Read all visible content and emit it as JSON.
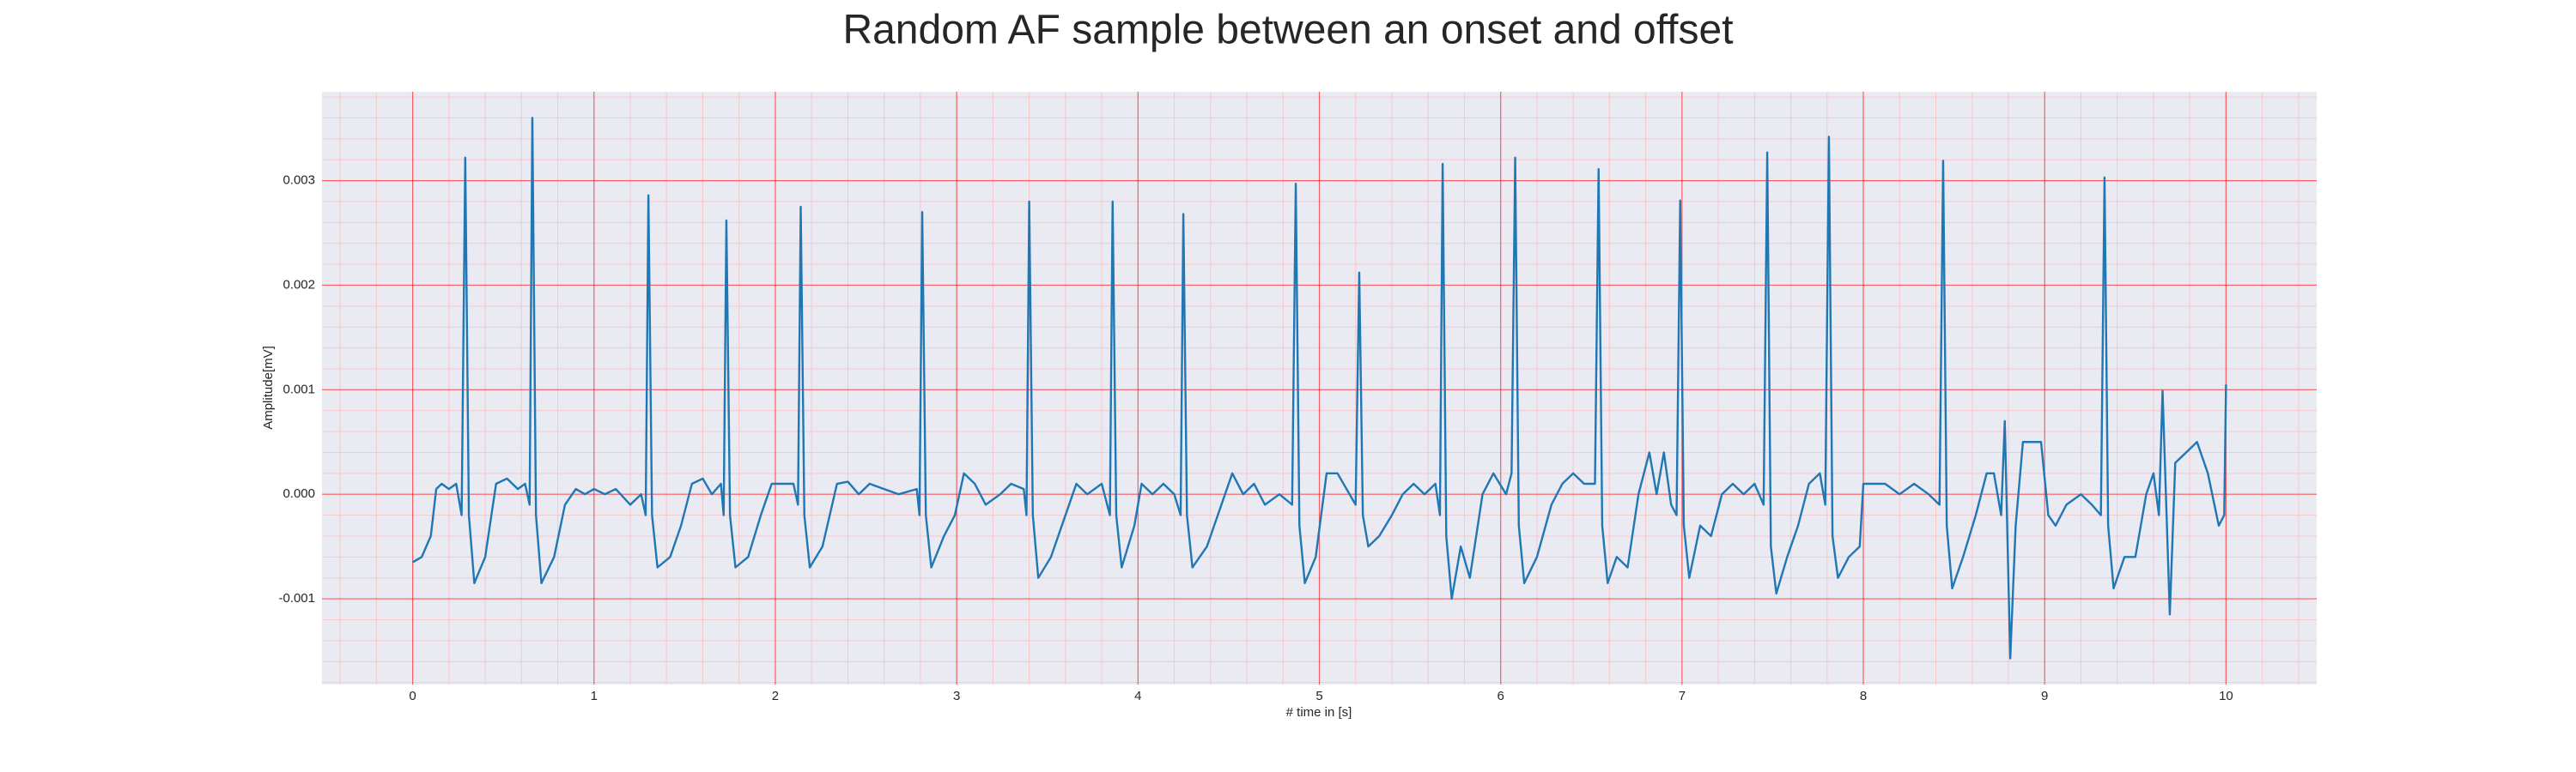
{
  "chart_data": {
    "type": "line",
    "title": "Random AF sample between an onset and offset",
    "xlabel": "# time in [s]",
    "ylabel": "Amplitude[mV]",
    "color": "#1f77b4",
    "grid": true,
    "xlim": [
      -0.5,
      10.5
    ],
    "ylim": [
      -0.00182,
      0.00385
    ],
    "xticks": [
      0,
      1,
      2,
      3,
      4,
      5,
      6,
      7,
      8,
      9,
      10
    ],
    "yticks": [
      -0.001,
      {
        "value": 0,
        "label": "0.000"
      },
      0.001,
      0.002,
      0.003
    ],
    "xminor": [
      -0.4,
      -0.2,
      0.2,
      0.4,
      0.6,
      0.8,
      1.2,
      1.4,
      1.6,
      1.8,
      2.2,
      2.4,
      2.6,
      2.8,
      3.2,
      3.4,
      3.6,
      3.8,
      4.2,
      4.4,
      4.6,
      4.8,
      5.2,
      5.4,
      5.6,
      5.8,
      6.2,
      6.4,
      6.6,
      6.8,
      7.2,
      7.4,
      7.6,
      7.8,
      8.2,
      8.4,
      8.6,
      8.8,
      9.2,
      9.4,
      9.6,
      9.8,
      10.2,
      10.4
    ],
    "yminor": [
      -0.0018,
      -0.0016,
      -0.0014,
      -0.0012,
      -0.0008,
      -0.0006,
      -0.0004,
      -0.0002,
      0.0002,
      0.0004,
      0.0006,
      0.0008,
      0.0012,
      0.0014,
      0.0016,
      0.0018,
      0.0022,
      0.0024,
      0.0026,
      0.0028,
      0.0032,
      0.0034,
      0.0036,
      0.0038
    ],
    "x": [
      0,
      0.05,
      0.1,
      0.13,
      0.16,
      0.2,
      0.24,
      0.27,
      0.29,
      0.31,
      0.34,
      0.4,
      0.46,
      0.52,
      0.58,
      0.62,
      0.645,
      0.66,
      0.68,
      0.71,
      0.78,
      0.84,
      0.9,
      0.95,
      1.0,
      1.06,
      1.12,
      1.2,
      1.26,
      1.285,
      1.3,
      1.32,
      1.35,
      1.42,
      1.48,
      1.54,
      1.6,
      1.65,
      1.7,
      1.715,
      1.73,
      1.75,
      1.78,
      1.85,
      1.92,
      1.98,
      2.04,
      2.1,
      2.125,
      2.14,
      2.16,
      2.19,
      2.26,
      2.34,
      2.4,
      2.46,
      2.52,
      2.6,
      2.68,
      2.78,
      2.795,
      2.81,
      2.83,
      2.86,
      2.93,
      2.99,
      3.04,
      3.1,
      3.16,
      3.24,
      3.3,
      3.37,
      3.385,
      3.4,
      3.42,
      3.45,
      3.52,
      3.6,
      3.66,
      3.72,
      3.8,
      3.845,
      3.86,
      3.88,
      3.91,
      3.98,
      4.02,
      4.08,
      4.14,
      4.2,
      4.235,
      4.25,
      4.27,
      4.3,
      4.38,
      4.46,
      4.52,
      4.58,
      4.64,
      4.7,
      4.78,
      4.85,
      4.87,
      4.89,
      4.92,
      4.98,
      5.04,
      5.1,
      5.2,
      5.22,
      5.24,
      5.27,
      5.33,
      5.4,
      5.46,
      5.52,
      5.58,
      5.64,
      5.665,
      5.68,
      5.7,
      5.73,
      5.78,
      5.83,
      5.9,
      5.96,
      6.03,
      6.06,
      6.08,
      6.1,
      6.13,
      6.2,
      6.28,
      6.34,
      6.4,
      6.46,
      6.52,
      6.54,
      6.56,
      6.59,
      6.64,
      6.7,
      6.76,
      6.82,
      6.86,
      6.9,
      6.94,
      6.97,
      6.99,
      7.01,
      7.04,
      7.1,
      7.16,
      7.22,
      7.28,
      7.34,
      7.4,
      7.45,
      7.47,
      7.49,
      7.52,
      7.58,
      7.64,
      7.7,
      7.76,
      7.79,
      7.81,
      7.83,
      7.86,
      7.92,
      7.98,
      8.0,
      8.06,
      8.12,
      8.2,
      8.28,
      8.36,
      8.42,
      8.44,
      8.46,
      8.49,
      8.55,
      8.62,
      8.68,
      8.72,
      8.76,
      8.78,
      8.81,
      8.84,
      8.88,
      8.93,
      8.98,
      9.02,
      9.06,
      9.12,
      9.2,
      9.26,
      9.31,
      9.33,
      9.35,
      9.38,
      9.44,
      9.5,
      9.56,
      9.6,
      9.63,
      9.65,
      9.69,
      9.72,
      9.78,
      9.84,
      9.9,
      9.96,
      9.99,
      10.0
    ],
    "values": [
      -0.00065,
      -0.0006,
      -0.0004,
      5e-05,
      0.0001,
      5e-05,
      0.0001,
      -0.0002,
      0.00322,
      -0.0002,
      -0.00085,
      -0.0006,
      0.0001,
      0.00015,
      5e-05,
      0.0001,
      -0.0001,
      0.0036,
      -0.0002,
      -0.00085,
      -0.0006,
      -0.0001,
      5e-05,
      0.0,
      5e-05,
      0.0,
      5e-05,
      -0.0001,
      0.0,
      -0.0002,
      0.00286,
      -0.0002,
      -0.0007,
      -0.0006,
      -0.0003,
      0.0001,
      0.00015,
      0.0,
      0.0001,
      -0.0002,
      0.00262,
      -0.0002,
      -0.0007,
      -0.0006,
      -0.0002,
      0.0001,
      0.0001,
      0.0001,
      -0.0001,
      0.00275,
      -0.0002,
      -0.0007,
      -0.0005,
      0.0001,
      0.00012,
      0.0,
      0.0001,
      5e-05,
      0.0,
      5e-05,
      -0.0002,
      0.0027,
      -0.0002,
      -0.0007,
      -0.0004,
      -0.0002,
      0.0002,
      0.0001,
      -0.0001,
      0.0,
      0.0001,
      5e-05,
      -0.0002,
      0.0028,
      -0.0002,
      -0.0008,
      -0.0006,
      -0.0002,
      0.0001,
      0.0,
      0.0001,
      -0.0002,
      0.0028,
      -0.0002,
      -0.0007,
      -0.0003,
      0.0001,
      0.0,
      0.0001,
      0.0,
      -0.0002,
      0.00268,
      -0.0002,
      -0.0007,
      -0.0005,
      -0.0001,
      0.0002,
      0.0,
      0.0001,
      -0.0001,
      0.0,
      -0.0001,
      0.00297,
      -0.0003,
      -0.00085,
      -0.0006,
      0.0002,
      0.0002,
      -0.0001,
      0.00212,
      -0.0002,
      -0.0005,
      -0.0004,
      -0.0002,
      0.0,
      0.0001,
      0.0,
      0.0001,
      -0.0002,
      0.00316,
      -0.0004,
      -0.001,
      -0.0005,
      -0.0008,
      0.0,
      0.0002,
      0.0,
      0.0002,
      0.00322,
      -0.0003,
      -0.00085,
      -0.0006,
      -0.0001,
      0.0001,
      0.0002,
      0.0001,
      0.0001,
      0.00311,
      -0.0003,
      -0.00085,
      -0.0006,
      -0.0007,
      0.0,
      0.0004,
      0.0,
      0.0004,
      -0.0001,
      -0.0002,
      0.00281,
      -0.0003,
      -0.0008,
      -0.0003,
      -0.0004,
      0.0,
      0.0001,
      0.0,
      0.0001,
      -0.0001,
      0.00327,
      -0.0005,
      -0.00095,
      -0.0006,
      -0.0003,
      0.0001,
      0.0002,
      -0.0001,
      0.00342,
      -0.0004,
      -0.0008,
      -0.0006,
      -0.0005,
      0.0001,
      0.0001,
      0.0001,
      0.0,
      0.0001,
      0.0,
      -0.0001,
      0.00319,
      -0.0003,
      -0.0009,
      -0.0006,
      -0.0002,
      0.0002,
      0.0002,
      -0.0002,
      0.0007,
      -0.00157,
      -0.0003,
      0.0005,
      0.0005,
      0.0005,
      -0.0002,
      -0.0003,
      -0.0001,
      0.0,
      -0.0001,
      -0.0002,
      0.00303,
      -0.0003,
      -0.0009,
      -0.0006,
      -0.0006,
      0.0,
      0.0002,
      -0.0002,
      0.00099,
      -0.00115,
      0.0003,
      0.0004,
      0.0005,
      0.0002,
      -0.0003,
      -0.0002,
      0.00105
    ]
  }
}
